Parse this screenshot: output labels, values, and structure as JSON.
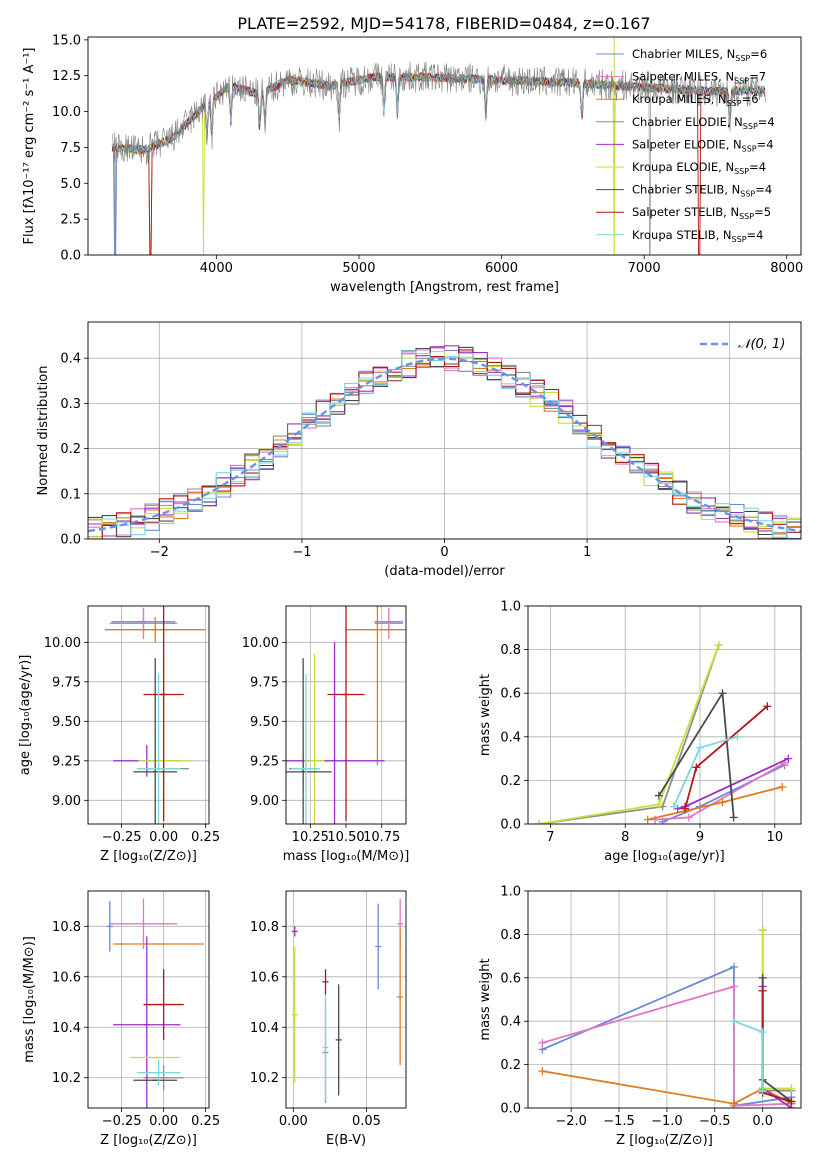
{
  "figure": {
    "title": "PLATE=2592, MJD=54178, FIBERID=0484, z=0.167"
  },
  "models": [
    {
      "name": "Chabrier MILES",
      "nssp": "6",
      "color": "#6a8ad6"
    },
    {
      "name": "Salpeter MILES",
      "nssp": "7",
      "color": "#e377c2"
    },
    {
      "name": "Kroupa MILES",
      "nssp": "6",
      "color": "#e07b1f"
    },
    {
      "name": "Chabrier ELODIE",
      "nssp": "4",
      "color": "#8f8f8f"
    },
    {
      "name": "Salpeter ELODIE",
      "nssp": "4",
      "color": "#9b30c8"
    },
    {
      "name": "Kroupa ELODIE",
      "nssp": "4",
      "color": "#cddc39"
    },
    {
      "name": "Chabrier STELIB",
      "nssp": "4",
      "color": "#4a4a4a"
    },
    {
      "name": "Salpeter STELIB",
      "nssp": "5",
      "color": "#b01717"
    },
    {
      "name": "Kroupa STELIB",
      "nssp": "4",
      "color": "#7fd6dc"
    }
  ],
  "chart_data": [
    {
      "id": "spectrum",
      "type": "line",
      "xlabel": "wavelength [Angstrom, rest frame]",
      "ylabel": "Flux [fλ10⁻¹⁷ erg cm⁻² s⁻¹ A⁻¹]",
      "xlim": [
        3100,
        8100
      ],
      "ylim": [
        0,
        15.2
      ],
      "xticks": [
        "4000",
        "5000",
        "6000",
        "7000",
        "8000"
      ],
      "yticks": [
        "0.0",
        "2.5",
        "5.0",
        "7.5",
        "10.0",
        "12.5",
        "15.0"
      ],
      "legend_position": "upper right",
      "series_note": "observed spectrum (grey) overlaid with 9 SSP model fits",
      "envelope": {
        "x": [
          3270,
          3500,
          3700,
          3900,
          4100,
          4300,
          4500,
          4800,
          5100,
          5500,
          6000,
          6500,
          7000,
          7500,
          7850
        ],
        "y": [
          7.5,
          7.3,
          8.2,
          10.3,
          11.8,
          11.2,
          12.2,
          11.8,
          12.4,
          12.4,
          12.2,
          12.0,
          11.7,
          11.4,
          11.5
        ]
      }
    },
    {
      "id": "residuals",
      "type": "histogram",
      "xlabel": "(data-model)/error",
      "ylabel": "Normed distribution",
      "xlim": [
        -2.5,
        2.5
      ],
      "ylim": [
        0,
        0.48
      ],
      "xticks": [
        "−2",
        "−1",
        "0",
        "1",
        "2"
      ],
      "yticks": [
        "0.0",
        "0.1",
        "0.2",
        "0.3",
        "0.4"
      ],
      "legend": [
        "𝒩(0, 1)"
      ],
      "legend_position": "upper right",
      "bin_width": 0.1,
      "reference": "normal pdf, mean 0, sigma 1"
    },
    {
      "id": "age-vs-Z",
      "type": "scatter",
      "xlabel": "Z [log₁₀(Z/Z⊙)]",
      "ylabel": "age  [log₁₀(age/yr)]",
      "xlim": [
        -0.45,
        0.27
      ],
      "ylim": [
        8.85,
        10.23
      ],
      "xticks": [
        "−0.25",
        "0.00",
        "0.25"
      ],
      "yticks": [
        "9.00",
        "9.25",
        "9.50",
        "9.75",
        "10.00"
      ],
      "points": [
        {
          "model": 0,
          "x": -0.12,
          "xe": 0.19,
          "y": 10.13,
          "ye": 0.07
        },
        {
          "model": 1,
          "x": -0.12,
          "xe": 0.2,
          "y": 10.12,
          "ye": 0.1
        },
        {
          "model": 2,
          "x": -0.05,
          "xe": 0.3,
          "y": 10.08,
          "ye": 0.08
        },
        {
          "model": 3,
          "x": 0.0,
          "xe": 0.15,
          "y": 9.2,
          "ye": 0.1
        },
        {
          "model": 4,
          "x": -0.1,
          "xe": 0.2,
          "y": 9.25,
          "ye": 0.1
        },
        {
          "model": 5,
          "x": 0.0,
          "xe": 0.15,
          "y": 9.25,
          "ye": 0.68
        },
        {
          "model": 6,
          "x": -0.05,
          "xe": 0.13,
          "y": 9.18,
          "ye": 0.72
        },
        {
          "model": 7,
          "x": 0.0,
          "xe": 0.12,
          "y": 9.67,
          "ye": 0.8
        },
        {
          "model": 8,
          "x": -0.03,
          "xe": 0.13,
          "y": 9.2,
          "ye": 0.6
        }
      ]
    },
    {
      "id": "age-vs-mass",
      "type": "scatter",
      "xlabel": "mass [log₁₀(M/M⊙)]",
      "ylabel": "",
      "xlim": [
        10.08,
        10.92
      ],
      "ylim": [
        8.85,
        10.23
      ],
      "xticks": [
        "10.25",
        "10.50",
        "10.75"
      ],
      "yticks": [
        "9.00",
        "9.25",
        "9.50",
        "9.75",
        "10.00"
      ],
      "points": [
        {
          "model": 0,
          "x": 10.8,
          "xe": 0.1,
          "y": 10.13,
          "ye": 0.07
        },
        {
          "model": 1,
          "x": 10.8,
          "xe": 0.1,
          "y": 10.12,
          "ye": 0.1
        },
        {
          "model": 2,
          "x": 10.72,
          "xe": 0.22,
          "y": 10.08,
          "ye": 0.86
        },
        {
          "model": 3,
          "x": 10.2,
          "xe": 0.1,
          "y": 9.2,
          "ye": 0.1
        },
        {
          "model": 4,
          "x": 10.42,
          "xe": 0.35,
          "y": 9.25,
          "ye": 0.75
        },
        {
          "model": 5,
          "x": 10.28,
          "xe": 0.07,
          "y": 9.25,
          "ye": 0.68
        },
        {
          "model": 6,
          "x": 10.2,
          "xe": 0.2,
          "y": 9.18,
          "ye": 0.72
        },
        {
          "model": 7,
          "x": 10.5,
          "xe": 0.13,
          "y": 9.67,
          "ye": 0.8
        },
        {
          "model": 8,
          "x": 10.22,
          "xe": 0.1,
          "y": 9.2,
          "ye": 0.6
        }
      ]
    },
    {
      "id": "mass-weight-vs-age",
      "type": "line",
      "xlabel": "age  [log₁₀(age/yr)]",
      "ylabel": "mass weight",
      "xlim": [
        6.7,
        10.35
      ],
      "ylim": [
        0,
        1.0
      ],
      "xticks": [
        "7",
        "8",
        "9",
        "10"
      ],
      "yticks": [
        "0.0",
        "0.2",
        "0.4",
        "0.6",
        "0.8",
        "1.0"
      ],
      "series": [
        {
          "model": 0,
          "x": [
            8.5,
            9.0,
            10.13
          ],
          "y": [
            0.01,
            0.08,
            0.27
          ]
        },
        {
          "model": 1,
          "x": [
            8.4,
            8.85,
            10.13
          ],
          "y": [
            0.02,
            0.03,
            0.28
          ]
        },
        {
          "model": 2,
          "x": [
            8.3,
            9.3,
            10.1
          ],
          "y": [
            0.02,
            0.1,
            0.17
          ]
        },
        {
          "model": 3,
          "x": [
            6.85,
            8.5,
            9.25
          ],
          "y": [
            0.0,
            0.08,
            0.82
          ]
        },
        {
          "model": 4,
          "x": [
            8.7,
            8.8,
            10.18
          ],
          "y": [
            0.07,
            0.08,
            0.3
          ]
        },
        {
          "model": 5,
          "x": [
            6.85,
            8.45,
            9.25
          ],
          "y": [
            0.0,
            0.09,
            0.82
          ]
        },
        {
          "model": 6,
          "x": [
            8.45,
            9.3,
            9.45
          ],
          "y": [
            0.13,
            0.6,
            0.03
          ]
        },
        {
          "model": 7,
          "x": [
            8.8,
            8.95,
            9.9
          ],
          "y": [
            0.07,
            0.26,
            0.54
          ]
        },
        {
          "model": 8,
          "x": [
            8.65,
            9.0,
            9.5
          ],
          "y": [
            0.08,
            0.35,
            0.4
          ]
        }
      ]
    },
    {
      "id": "mass-vs-Z",
      "type": "scatter",
      "xlabel": "Z [log₁₀(Z/Z⊙)]",
      "ylabel": "mass [log₁₀(M/M⊙)]",
      "xlim": [
        -0.45,
        0.27
      ],
      "ylim": [
        10.08,
        10.94
      ],
      "xticks": [
        "−0.25",
        "0.00",
        "0.25"
      ],
      "yticks": [
        "10.2",
        "10.4",
        "10.6",
        "10.8"
      ],
      "points": [
        {
          "model": 0,
          "x": -0.32,
          "xe": 0.0,
          "y": 10.8,
          "ye": 0.1
        },
        {
          "model": 1,
          "x": -0.12,
          "xe": 0.2,
          "y": 10.81,
          "ye": 0.1
        },
        {
          "model": 2,
          "x": -0.03,
          "xe": 0.27,
          "y": 10.73,
          "ye": 0.0
        },
        {
          "model": 3,
          "x": 0.0,
          "xe": 0.12,
          "y": 10.2,
          "ye": 0.05
        },
        {
          "model": 4,
          "x": -0.1,
          "xe": 0.2,
          "y": 10.41,
          "ye": 0.35
        },
        {
          "model": 5,
          "x": -0.05,
          "xe": 0.15,
          "y": 10.28,
          "ye": 0.0
        },
        {
          "model": 6,
          "x": -0.05,
          "xe": 0.13,
          "y": 10.19,
          "ye": 0.0
        },
        {
          "model": 7,
          "x": 0.0,
          "xe": 0.12,
          "y": 10.49,
          "ye": 0.14
        },
        {
          "model": 8,
          "x": -0.03,
          "xe": 0.13,
          "y": 10.22,
          "ye": 0.05
        }
      ]
    },
    {
      "id": "mass-vs-EBV",
      "type": "scatter",
      "xlabel": "E(B-V)",
      "ylabel": "",
      "xlim": [
        -0.005,
        0.077
      ],
      "ylim": [
        10.08,
        10.94
      ],
      "xticks": [
        "0.00",
        "0.05"
      ],
      "yticks": [
        "10.2",
        "10.4",
        "10.6",
        "10.8"
      ],
      "points": [
        {
          "model": 0,
          "x": 0.058,
          "y": 10.72,
          "ye": 0.17
        },
        {
          "model": 1,
          "x": 0.073,
          "y": 10.81,
          "ye": 0.1
        },
        {
          "model": 2,
          "x": 0.073,
          "y": 10.52,
          "ye": 0.27
        },
        {
          "model": 3,
          "x": 0.022,
          "y": 10.3,
          "ye": 0.2
        },
        {
          "model": 4,
          "x": 0.001,
          "y": 10.78,
          "ye": 0.02
        },
        {
          "model": 5,
          "x": 0.001,
          "y": 10.45,
          "ye": 0.27
        },
        {
          "model": 6,
          "x": 0.031,
          "y": 10.35,
          "ye": 0.22
        },
        {
          "model": 7,
          "x": 0.022,
          "y": 10.58,
          "ye": 0.05
        },
        {
          "model": 8,
          "x": 0.022,
          "y": 10.32,
          "ye": 0.21
        }
      ]
    },
    {
      "id": "mass-weight-vs-Z",
      "type": "line",
      "xlabel": "Z [log₁₀(Z/Z⊙)]",
      "ylabel": "mass weight",
      "xlim": [
        -2.45,
        0.4
      ],
      "ylim": [
        0,
        1.0
      ],
      "xticks": [
        "−2.0",
        "−1.5",
        "−1.0",
        "−0.5",
        "0.0"
      ],
      "yticks": [
        "0.0",
        "0.2",
        "0.4",
        "0.6",
        "0.8",
        "1.0"
      ],
      "series": [
        {
          "model": 0,
          "x": [
            -2.3,
            -0.3,
            -0.3,
            0.3
          ],
          "y": [
            0.27,
            0.65,
            0.01,
            0.05
          ]
        },
        {
          "model": 1,
          "x": [
            -2.3,
            -0.3,
            -0.3,
            0.3
          ],
          "y": [
            0.3,
            0.56,
            0.01,
            0.02
          ]
        },
        {
          "model": 2,
          "x": [
            -2.3,
            -0.3,
            0.0,
            0.3
          ],
          "y": [
            0.17,
            0.02,
            0.09,
            0.02
          ]
        },
        {
          "model": 3,
          "x": [
            0.0,
            0.0,
            0.3
          ],
          "y": [
            0.82,
            0.08,
            0.08
          ]
        },
        {
          "model": 4,
          "x": [
            0.0,
            0.0,
            0.3
          ],
          "y": [
            0.56,
            0.09,
            0.0
          ]
        },
        {
          "model": 5,
          "x": [
            0.0,
            0.0,
            0.3
          ],
          "y": [
            0.82,
            0.09,
            0.09
          ]
        },
        {
          "model": 6,
          "x": [
            0.0,
            0.0,
            0.3
          ],
          "y": [
            0.6,
            0.13,
            0.03
          ]
        },
        {
          "model": 7,
          "x": [
            0.0,
            0.0,
            0.3
          ],
          "y": [
            0.54,
            0.07,
            0.03
          ]
        },
        {
          "model": 8,
          "x": [
            -0.3,
            0.0,
            0.0
          ],
          "y": [
            0.4,
            0.35,
            0.08
          ]
        }
      ]
    }
  ]
}
